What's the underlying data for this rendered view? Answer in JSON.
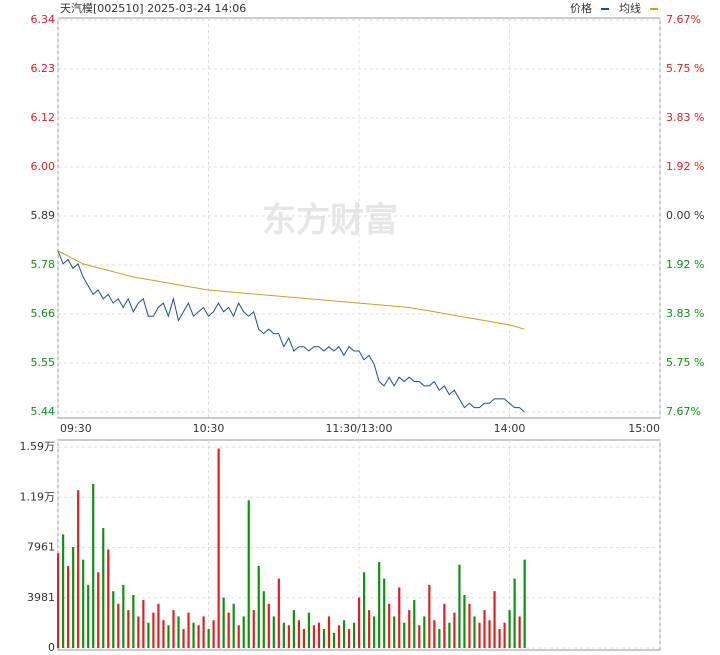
{
  "chart_data": [
    {
      "type": "line",
      "title": "天汽模[002510] 2025-03-24 14:06",
      "watermark": "东方财富",
      "xlim": [
        0,
        240
      ],
      "xticks": [
        {
          "value": 0,
          "label": "09:30"
        },
        {
          "value": 60,
          "label": "10:30"
        },
        {
          "value": 120,
          "label": "11:30/13:00"
        },
        {
          "value": 180,
          "label": "14:00"
        },
        {
          "value": 240,
          "label": "15:00"
        }
      ],
      "ylim": [
        5.44,
        6.34
      ],
      "yticks": [
        5.44,
        {
          "value": 5.5525,
          "label": "5.55"
        },
        {
          "value": 5.665,
          "label": "5.66"
        },
        {
          "value": 5.7775,
          "label": "5.78"
        },
        5.89,
        {
          "value": 6.0025,
          "label": "6.00"
        },
        {
          "value": 6.115,
          "label": "6.12"
        },
        {
          "value": 6.2275,
          "label": "6.23"
        },
        6.34
      ],
      "y2lim": [
        -7.67,
        7.67
      ],
      "y2ticks": [
        {
          "value": -7.67,
          "label": "7.67%"
        },
        {
          "value": -5.75,
          "label": "5.75 %"
        },
        {
          "value": -3.83,
          "label": "3.83 %"
        },
        {
          "value": -1.92,
          "label": "1.92 %"
        },
        {
          "value": 0,
          "label": "0.00 %"
        },
        {
          "value": 1.92,
          "label": "1.92 %"
        },
        {
          "value": 3.83,
          "label": "3.83 %"
        },
        {
          "value": 5.75,
          "label": "5.75 %"
        },
        {
          "value": 7.67,
          "label": "7.67%"
        }
      ],
      "grid": true,
      "up_color": "#e02020",
      "down_color": "#109010",
      "flat_color": "#333333",
      "series": [
        {
          "name": "价格",
          "color": "#1f4e96",
          "x": [
            0,
            2,
            4,
            6,
            8,
            10,
            12,
            14,
            16,
            18,
            20,
            22,
            24,
            26,
            28,
            30,
            32,
            34,
            36,
            38,
            40,
            42,
            44,
            46,
            48,
            50,
            52,
            54,
            56,
            58,
            60,
            62,
            64,
            66,
            68,
            70,
            72,
            74,
            76,
            78,
            80,
            82,
            84,
            86,
            88,
            90,
            92,
            94,
            96,
            98,
            100,
            102,
            104,
            106,
            108,
            110,
            112,
            114,
            116,
            118,
            120,
            122,
            124,
            126,
            128,
            130,
            132,
            134,
            136,
            138,
            140,
            142,
            144,
            146,
            148,
            150,
            152,
            154,
            156,
            158,
            160,
            162,
            164,
            166,
            168,
            170,
            172,
            174,
            176,
            178,
            180,
            182,
            184,
            186
          ],
          "values": [
            5.81,
            5.78,
            5.79,
            5.77,
            5.78,
            5.75,
            5.73,
            5.71,
            5.72,
            5.7,
            5.71,
            5.69,
            5.7,
            5.68,
            5.7,
            5.67,
            5.69,
            5.7,
            5.66,
            5.66,
            5.68,
            5.69,
            5.66,
            5.7,
            5.65,
            5.67,
            5.69,
            5.66,
            5.67,
            5.68,
            5.66,
            5.67,
            5.69,
            5.67,
            5.68,
            5.66,
            5.69,
            5.67,
            5.66,
            5.67,
            5.63,
            5.62,
            5.63,
            5.62,
            5.62,
            5.59,
            5.61,
            5.58,
            5.59,
            5.59,
            5.58,
            5.59,
            5.59,
            5.58,
            5.59,
            5.58,
            5.59,
            5.57,
            5.59,
            5.58,
            5.58,
            5.56,
            5.57,
            5.55,
            5.51,
            5.5,
            5.52,
            5.5,
            5.52,
            5.51,
            5.52,
            5.51,
            5.51,
            5.5,
            5.5,
            5.51,
            5.49,
            5.5,
            5.48,
            5.49,
            5.47,
            5.45,
            5.46,
            5.45,
            5.45,
            5.46,
            5.46,
            5.47,
            5.47,
            5.47,
            5.46,
            5.45,
            5.45,
            5.44
          ]
        },
        {
          "name": "均线",
          "color": "#c8a028",
          "x": [
            0,
            10,
            20,
            30,
            40,
            50,
            60,
            70,
            80,
            90,
            100,
            110,
            120,
            130,
            140,
            150,
            160,
            170,
            180,
            186
          ],
          "values": [
            5.81,
            5.78,
            5.765,
            5.75,
            5.74,
            5.73,
            5.72,
            5.715,
            5.71,
            5.705,
            5.7,
            5.695,
            5.69,
            5.685,
            5.68,
            5.67,
            5.66,
            5.65,
            5.64,
            5.63
          ]
        }
      ]
    },
    {
      "type": "bar",
      "xlim": [
        0,
        240
      ],
      "ylim": [
        0,
        15924
      ],
      "yticks": [
        0,
        3981,
        7961,
        {
          "value": 11942,
          "label": "1.19万"
        },
        {
          "value": 15924,
          "label": "1.59万"
        }
      ],
      "grid": true,
      "x": [
        0,
        2,
        4,
        6,
        8,
        10,
        12,
        14,
        16,
        18,
        20,
        22,
        24,
        26,
        28,
        30,
        32,
        34,
        36,
        38,
        40,
        42,
        44,
        46,
        48,
        50,
        52,
        54,
        56,
        58,
        60,
        62,
        64,
        66,
        68,
        70,
        72,
        74,
        76,
        78,
        80,
        82,
        84,
        86,
        88,
        90,
        92,
        94,
        96,
        98,
        100,
        102,
        104,
        106,
        108,
        110,
        112,
        114,
        116,
        118,
        120,
        122,
        124,
        126,
        128,
        130,
        132,
        134,
        136,
        138,
        140,
        142,
        144,
        146,
        148,
        150,
        152,
        154,
        156,
        158,
        160,
        162,
        164,
        166,
        168,
        170,
        172,
        174,
        176,
        178,
        180,
        182,
        184,
        186
      ],
      "values": [
        7500,
        9000,
        6500,
        8000,
        12500,
        7000,
        5000,
        13000,
        6000,
        9500,
        7800,
        4500,
        3500,
        5000,
        3000,
        4200,
        2500,
        3800,
        2000,
        2800,
        3500,
        2200,
        1800,
        3000,
        2500,
        1500,
        2800,
        2000,
        1800,
        2500,
        1500,
        2200,
        15800,
        4000,
        2800,
        3500,
        1800,
        2500,
        11700,
        3000,
        6500,
        4500,
        3500,
        2500,
        5500,
        2000,
        1800,
        3000,
        2200,
        1500,
        2800,
        1800,
        2000,
        1500,
        2500,
        1200,
        1800,
        2200,
        1500,
        2000,
        4000,
        6000,
        3000,
        2500,
        6800,
        5500,
        3500,
        2500,
        4800,
        2000,
        3000,
        3800,
        1800,
        2500,
        5000,
        2200,
        1500,
        3500,
        2000,
        2800,
        6600,
        4200,
        3500,
        2500,
        2000,
        3000,
        2200,
        4500,
        1500,
        2000,
        3000,
        5500,
        2500,
        7000
      ]
    }
  ]
}
